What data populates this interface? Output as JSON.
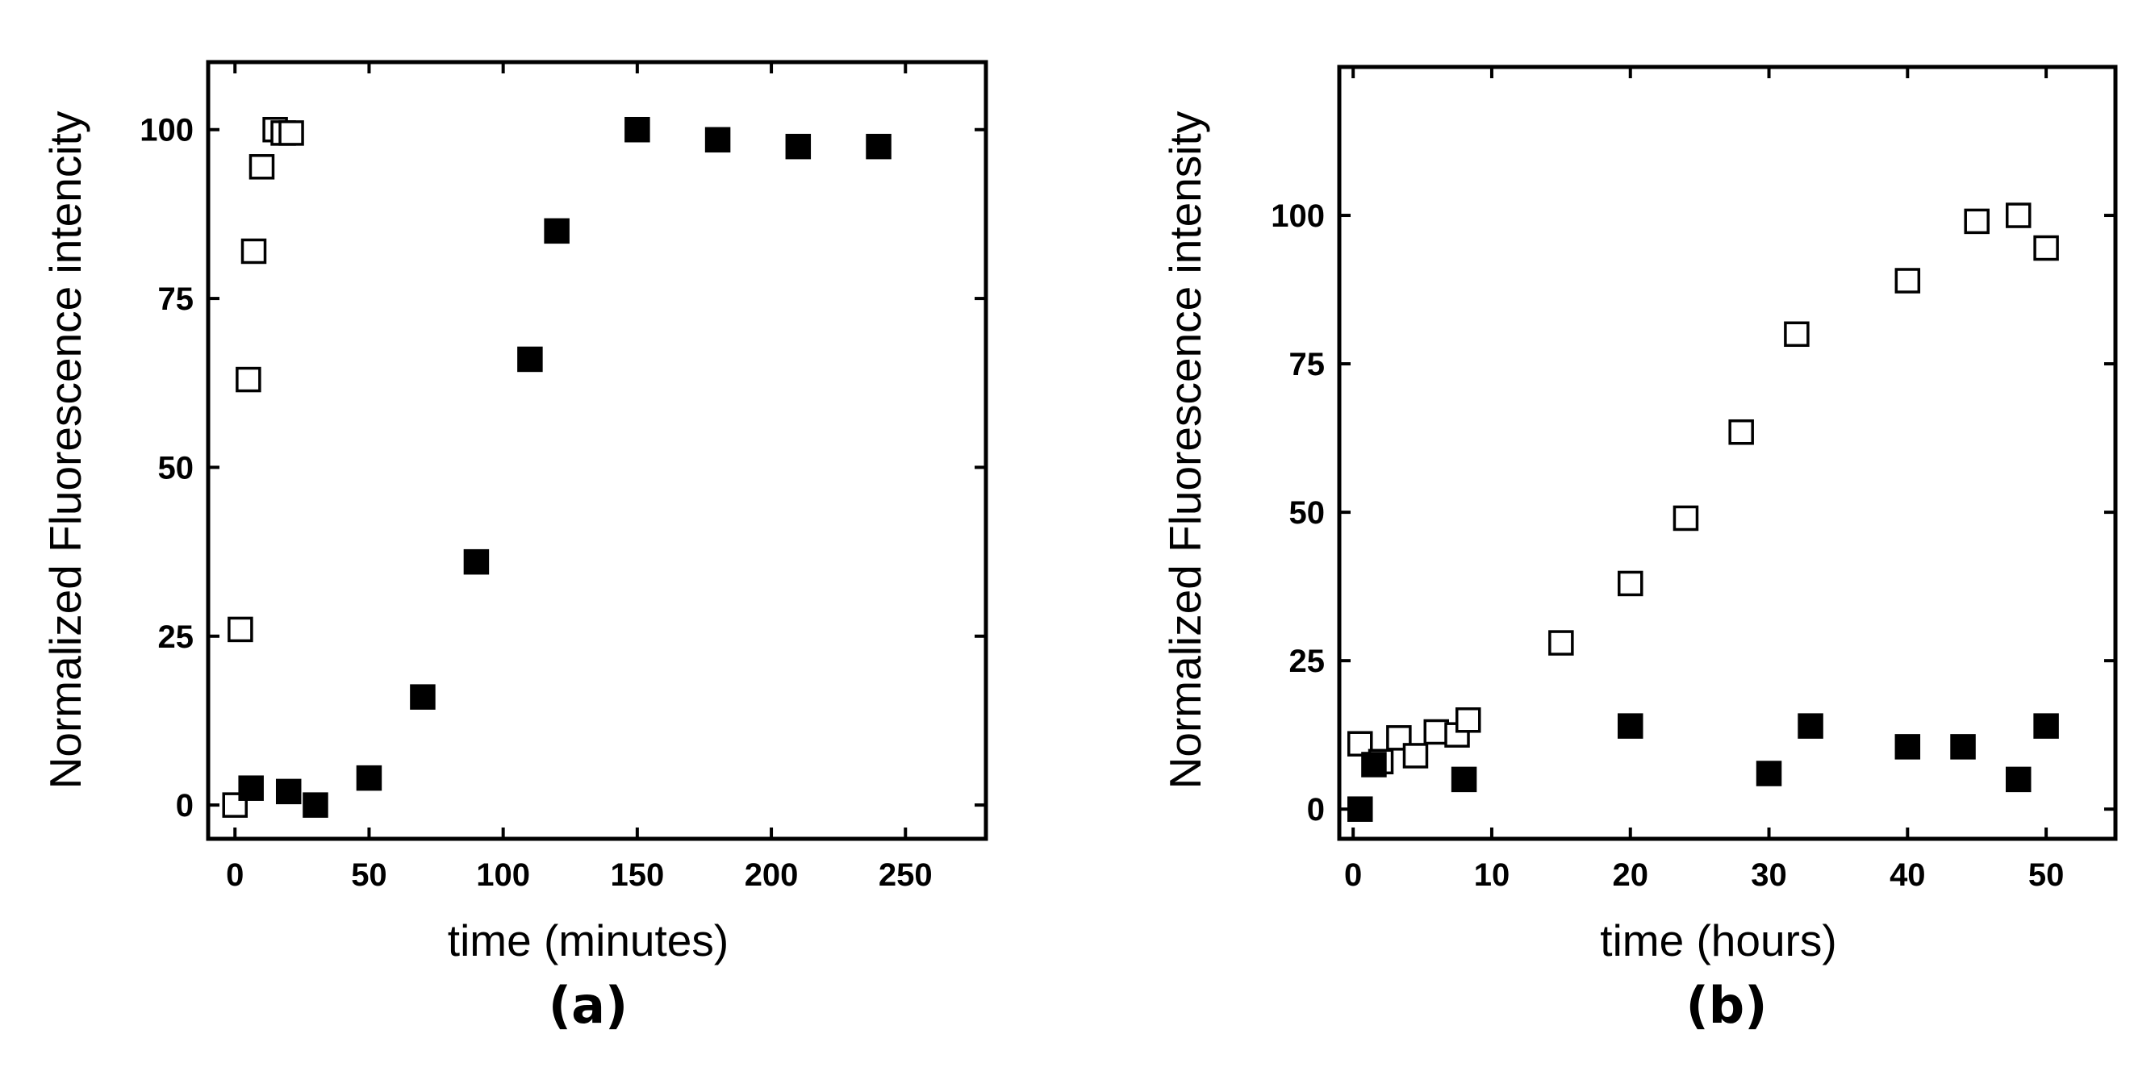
{
  "chart_data": [
    {
      "type": "scatter",
      "panel_label": "(a)",
      "xlabel": "time (minutes)",
      "ylabel": "Normalized Fluorescence intencity",
      "xlim": [
        -10,
        280
      ],
      "ylim": [
        -5,
        110
      ],
      "xticks": [
        0,
        50,
        100,
        150,
        200,
        250
      ],
      "xtick_labels": [
        "0",
        "50",
        "100",
        "150",
        "200",
        "250"
      ],
      "yticks": [
        0,
        25,
        50,
        75,
        100
      ],
      "ytick_labels": [
        "0",
        "25",
        "50",
        "75",
        "100"
      ],
      "grid": false,
      "series": [
        {
          "name": "open squares",
          "marker": "open-square",
          "color": "#000000",
          "points": [
            {
              "x": 0,
              "y": 0
            },
            {
              "x": 2,
              "y": 26
            },
            {
              "x": 5,
              "y": 63
            },
            {
              "x": 7,
              "y": 82
            },
            {
              "x": 10,
              "y": 94.5
            },
            {
              "x": 15,
              "y": 100
            },
            {
              "x": 18,
              "y": 99.5
            },
            {
              "x": 21,
              "y": 99.5
            }
          ]
        },
        {
          "name": "filled squares",
          "marker": "filled-square",
          "color": "#000000",
          "points": [
            {
              "x": 6,
              "y": 2.5
            },
            {
              "x": 20,
              "y": 2
            },
            {
              "x": 30,
              "y": 0
            },
            {
              "x": 50,
              "y": 4
            },
            {
              "x": 70,
              "y": 16
            },
            {
              "x": 90,
              "y": 36
            },
            {
              "x": 110,
              "y": 66
            },
            {
              "x": 120,
              "y": 85
            },
            {
              "x": 150,
              "y": 100
            },
            {
              "x": 180,
              "y": 98.5
            },
            {
              "x": 210,
              "y": 97.5
            },
            {
              "x": 240,
              "y": 97.5
            }
          ]
        }
      ]
    },
    {
      "type": "scatter",
      "panel_label": "(b)",
      "xlabel": "time (hours)",
      "ylabel": "Normalized Fluorescence intensity",
      "xlim": [
        -1,
        55
      ],
      "ylim": [
        -5,
        125
      ],
      "xticks": [
        0,
        10,
        20,
        30,
        40,
        50
      ],
      "xtick_labels": [
        "0",
        "10",
        "20",
        "30",
        "40",
        "50"
      ],
      "yticks": [
        0,
        25,
        50,
        75,
        100
      ],
      "ytick_labels": [
        "0",
        "25",
        "50",
        "75",
        "100"
      ],
      "grid": false,
      "series": [
        {
          "name": "open squares",
          "marker": "open-square",
          "color": "#000000",
          "points": [
            {
              "x": 0.5,
              "y": 11
            },
            {
              "x": 2,
              "y": 8
            },
            {
              "x": 3.3,
              "y": 12
            },
            {
              "x": 4.5,
              "y": 9
            },
            {
              "x": 6,
              "y": 13
            },
            {
              "x": 7.5,
              "y": 12.5
            },
            {
              "x": 8.3,
              "y": 15
            },
            {
              "x": 15,
              "y": 28
            },
            {
              "x": 20,
              "y": 38
            },
            {
              "x": 24,
              "y": 49
            },
            {
              "x": 28,
              "y": 63.5
            },
            {
              "x": 32,
              "y": 80
            },
            {
              "x": 40,
              "y": 89
            },
            {
              "x": 45,
              "y": 99
            },
            {
              "x": 48,
              "y": 100
            },
            {
              "x": 50,
              "y": 94.5
            }
          ]
        },
        {
          "name": "filled squares",
          "marker": "filled-square",
          "color": "#000000",
          "points": [
            {
              "x": 0.5,
              "y": 0
            },
            {
              "x": 1.5,
              "y": 7.5
            },
            {
              "x": 8,
              "y": 5
            },
            {
              "x": 20,
              "y": 14
            },
            {
              "x": 30,
              "y": 6
            },
            {
              "x": 33,
              "y": 14
            },
            {
              "x": 40,
              "y": 10.5
            },
            {
              "x": 44,
              "y": 10.5
            },
            {
              "x": 48,
              "y": 5
            },
            {
              "x": 50,
              "y": 14
            }
          ]
        }
      ]
    }
  ]
}
